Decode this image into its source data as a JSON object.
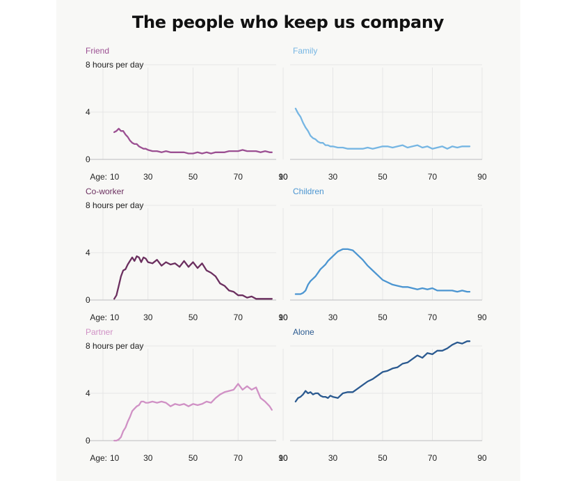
{
  "page": {
    "title": "The people who keep us company",
    "y_unit_label": "8 hours per day",
    "age_prefix": "Age:"
  },
  "colors": {
    "Friend": "#9b4f92",
    "Family": "#76b6e3",
    "Co-worker": "#6b2f5f",
    "Children": "#4b95d1",
    "Partner": "#d091c5",
    "Alone": "#2b5a90"
  },
  "chart_data": [
    {
      "type": "line",
      "title": "Friend",
      "xlabel": "Age",
      "ylabel": "hours per day",
      "xlim": [
        10,
        90
      ],
      "ylim": [
        0,
        8
      ],
      "xticks": [
        10,
        30,
        50,
        70,
        90
      ],
      "yticks": [
        0,
        4,
        8
      ],
      "series": [
        {
          "name": "Friend",
          "x": [
            15,
            16,
            17,
            18,
            19,
            20,
            21,
            22,
            23,
            24,
            25,
            26,
            27,
            28,
            29,
            30,
            32,
            34,
            36,
            38,
            40,
            42,
            44,
            46,
            48,
            50,
            52,
            54,
            56,
            58,
            60,
            62,
            64,
            66,
            68,
            70,
            72,
            74,
            76,
            78,
            80,
            82,
            84,
            85
          ],
          "values": [
            2.3,
            2.4,
            2.6,
            2.4,
            2.4,
            2.1,
            1.9,
            1.6,
            1.4,
            1.3,
            1.3,
            1.1,
            1.0,
            0.9,
            0.9,
            0.8,
            0.7,
            0.7,
            0.6,
            0.7,
            0.6,
            0.6,
            0.6,
            0.6,
            0.5,
            0.5,
            0.6,
            0.5,
            0.6,
            0.5,
            0.6,
            0.6,
            0.6,
            0.7,
            0.7,
            0.7,
            0.8,
            0.7,
            0.7,
            0.7,
            0.6,
            0.7,
            0.6,
            0.6
          ]
        }
      ]
    },
    {
      "type": "line",
      "title": "Family",
      "xlabel": "Age",
      "ylabel": "hours per day",
      "xlim": [
        10,
        90
      ],
      "ylim": [
        0,
        8
      ],
      "xticks": [
        10,
        30,
        50,
        70,
        90
      ],
      "yticks": [
        0,
        4,
        8
      ],
      "series": [
        {
          "name": "Family",
          "x": [
            15,
            16,
            17,
            18,
            19,
            20,
            21,
            22,
            23,
            24,
            25,
            26,
            27,
            28,
            29,
            30,
            32,
            34,
            36,
            38,
            40,
            42,
            44,
            46,
            48,
            50,
            52,
            54,
            56,
            58,
            60,
            62,
            64,
            66,
            68,
            70,
            72,
            74,
            76,
            78,
            80,
            82,
            84,
            85
          ],
          "values": [
            4.3,
            3.9,
            3.6,
            3.1,
            2.7,
            2.4,
            2.0,
            1.8,
            1.7,
            1.5,
            1.4,
            1.4,
            1.2,
            1.2,
            1.1,
            1.1,
            1.0,
            1.0,
            0.9,
            0.9,
            0.9,
            0.9,
            1.0,
            0.9,
            1.0,
            1.1,
            1.1,
            1.0,
            1.1,
            1.2,
            1.0,
            1.1,
            1.2,
            1.0,
            1.1,
            0.9,
            1.0,
            1.1,
            0.9,
            1.1,
            1.0,
            1.1,
            1.1,
            1.1
          ]
        }
      ]
    },
    {
      "type": "line",
      "title": "Co-worker",
      "xlabel": "Age",
      "ylabel": "hours per day",
      "xlim": [
        10,
        90
      ],
      "ylim": [
        0,
        8
      ],
      "xticks": [
        10,
        30,
        50,
        70,
        90
      ],
      "yticks": [
        0,
        4,
        8
      ],
      "series": [
        {
          "name": "Co-worker",
          "x": [
            15,
            16,
            17,
            18,
            19,
            20,
            21,
            22,
            23,
            24,
            25,
            26,
            27,
            28,
            29,
            30,
            32,
            34,
            36,
            38,
            40,
            42,
            44,
            46,
            48,
            50,
            52,
            54,
            56,
            58,
            60,
            62,
            64,
            66,
            68,
            70,
            72,
            74,
            76,
            78,
            80,
            82,
            84,
            85
          ],
          "values": [
            0.1,
            0.4,
            1.2,
            2.0,
            2.5,
            2.6,
            3.0,
            3.3,
            3.6,
            3.3,
            3.7,
            3.6,
            3.2,
            3.6,
            3.5,
            3.2,
            3.1,
            3.4,
            2.9,
            3.2,
            3.0,
            3.1,
            2.8,
            3.3,
            2.8,
            3.2,
            2.7,
            3.1,
            2.5,
            2.3,
            2.0,
            1.4,
            1.2,
            0.8,
            0.7,
            0.4,
            0.4,
            0.2,
            0.3,
            0.1,
            0.1,
            0.1,
            0.1,
            0.1
          ]
        }
      ]
    },
    {
      "type": "line",
      "title": "Children",
      "xlabel": "Age",
      "ylabel": "hours per day",
      "xlim": [
        10,
        90
      ],
      "ylim": [
        0,
        8
      ],
      "xticks": [
        10,
        30,
        50,
        70,
        90
      ],
      "yticks": [
        0,
        4,
        8
      ],
      "series": [
        {
          "name": "Children",
          "x": [
            15,
            16,
            17,
            18,
            19,
            20,
            21,
            22,
            23,
            24,
            25,
            26,
            27,
            28,
            29,
            30,
            32,
            34,
            36,
            38,
            40,
            42,
            44,
            46,
            48,
            50,
            52,
            54,
            56,
            58,
            60,
            62,
            64,
            66,
            68,
            70,
            72,
            74,
            76,
            78,
            80,
            82,
            84,
            85
          ],
          "values": [
            0.5,
            0.5,
            0.5,
            0.6,
            0.8,
            1.3,
            1.6,
            1.8,
            2.0,
            2.3,
            2.6,
            2.8,
            3.0,
            3.3,
            3.5,
            3.7,
            4.1,
            4.3,
            4.3,
            4.2,
            3.8,
            3.4,
            2.9,
            2.5,
            2.1,
            1.7,
            1.5,
            1.3,
            1.2,
            1.1,
            1.1,
            1.0,
            0.9,
            1.0,
            0.9,
            1.0,
            0.8,
            0.8,
            0.8,
            0.8,
            0.7,
            0.8,
            0.7,
            0.7
          ]
        }
      ]
    },
    {
      "type": "line",
      "title": "Partner",
      "xlabel": "Age",
      "ylabel": "hours per day",
      "xlim": [
        10,
        90
      ],
      "ylim": [
        0,
        8
      ],
      "xticks": [
        10,
        30,
        50,
        70,
        90
      ],
      "yticks": [
        0,
        4,
        8
      ],
      "series": [
        {
          "name": "Partner",
          "x": [
            15,
            16,
            17,
            18,
            19,
            20,
            21,
            22,
            23,
            24,
            25,
            26,
            27,
            28,
            29,
            30,
            32,
            34,
            36,
            38,
            40,
            42,
            44,
            46,
            48,
            50,
            52,
            54,
            56,
            58,
            60,
            62,
            64,
            66,
            68,
            70,
            72,
            74,
            76,
            78,
            80,
            82,
            84,
            85
          ],
          "values": [
            0.0,
            0.0,
            0.1,
            0.3,
            0.8,
            1.1,
            1.6,
            2.0,
            2.5,
            2.7,
            2.9,
            3.0,
            3.3,
            3.3,
            3.2,
            3.2,
            3.3,
            3.2,
            3.3,
            3.2,
            2.9,
            3.1,
            3.0,
            3.1,
            2.9,
            3.1,
            3.0,
            3.1,
            3.3,
            3.2,
            3.6,
            3.9,
            4.1,
            4.2,
            4.3,
            4.8,
            4.3,
            4.6,
            4.3,
            4.5,
            3.6,
            3.3,
            2.9,
            2.6
          ]
        }
      ]
    },
    {
      "type": "line",
      "title": "Alone",
      "xlabel": "Age",
      "ylabel": "hours per day",
      "xlim": [
        10,
        90
      ],
      "ylim": [
        0,
        8
      ],
      "xticks": [
        10,
        30,
        50,
        70,
        90
      ],
      "yticks": [
        0,
        4,
        8
      ],
      "series": [
        {
          "name": "Alone",
          "x": [
            15,
            16,
            17,
            18,
            19,
            20,
            21,
            22,
            23,
            24,
            25,
            26,
            27,
            28,
            29,
            30,
            32,
            34,
            36,
            38,
            40,
            42,
            44,
            46,
            48,
            50,
            52,
            54,
            56,
            58,
            60,
            62,
            64,
            66,
            68,
            70,
            72,
            74,
            76,
            78,
            80,
            82,
            84,
            85
          ],
          "values": [
            3.3,
            3.6,
            3.7,
            3.9,
            4.2,
            4.0,
            4.1,
            3.9,
            4.0,
            4.0,
            3.8,
            3.7,
            3.7,
            3.6,
            3.8,
            3.7,
            3.6,
            4.0,
            4.1,
            4.1,
            4.4,
            4.7,
            5.0,
            5.2,
            5.5,
            5.8,
            5.9,
            6.1,
            6.2,
            6.5,
            6.6,
            6.9,
            7.2,
            7.0,
            7.4,
            7.3,
            7.6,
            7.6,
            7.8,
            8.1,
            8.3,
            8.2,
            8.4,
            8.4
          ]
        }
      ]
    }
  ]
}
